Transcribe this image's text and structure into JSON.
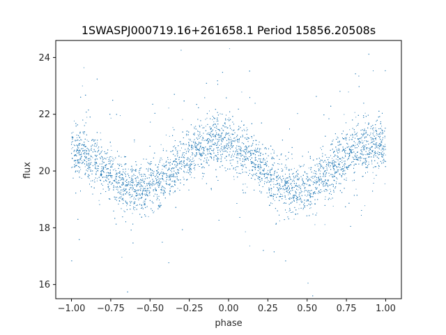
{
  "chart_data": {
    "type": "scatter",
    "title": "1SWASPJ000719.16+261658.1 Period 15856.20508s",
    "xlabel": "phase",
    "ylabel": "flux",
    "xlim": [
      -1.1,
      1.1
    ],
    "ylim": [
      15.5,
      24.6
    ],
    "xticks": [
      -1.0,
      -0.75,
      -0.5,
      -0.25,
      0.0,
      0.25,
      0.5,
      0.75,
      1.0
    ],
    "xtick_labels": [
      "−1.00",
      "−0.75",
      "−0.50",
      "−0.25",
      "0.00",
      "0.25",
      "0.50",
      "0.75",
      "1.00"
    ],
    "yticks": [
      16,
      18,
      20,
      22,
      24
    ],
    "ytick_labels": [
      "16",
      "18",
      "20",
      "22",
      "24"
    ],
    "grid": false,
    "marker_color": "#1f77b4",
    "series_trend": {
      "phase": [
        -1.0,
        -0.9,
        -0.8,
        -0.7,
        -0.6,
        -0.55,
        -0.5,
        -0.4,
        -0.3,
        -0.2,
        -0.1,
        0.0,
        0.1,
        0.2,
        0.3,
        0.4,
        0.45,
        0.5,
        0.6,
        0.7,
        0.8,
        0.9,
        1.0
      ],
      "flux": [
        20.8,
        20.55,
        20.1,
        19.65,
        19.4,
        19.35,
        19.45,
        19.75,
        20.3,
        20.8,
        21.05,
        21.05,
        20.7,
        20.15,
        19.65,
        19.35,
        19.3,
        19.4,
        19.75,
        20.3,
        20.75,
        20.95,
        20.9
      ]
    }
  }
}
